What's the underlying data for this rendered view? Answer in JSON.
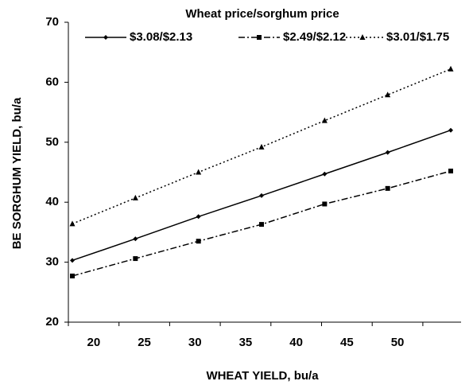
{
  "chart_data": {
    "type": "line",
    "legend_title": "Wheat price/sorghum price",
    "x_label": "WHEAT YIELD, bu/a",
    "y_label": "BE  SORGHUM YIELD, bu/a",
    "categories": [
      20,
      25,
      30,
      35,
      40,
      45,
      50
    ],
    "series": [
      {
        "name": "$3.08/$2.13",
        "color": "#000000",
        "dash": "none",
        "marker": "diamond",
        "values": [
          30.3,
          33.9,
          37.6,
          41.1,
          44.7,
          48.3,
          52.0
        ]
      },
      {
        "name": "$2.49/$2.12",
        "color": "#000000",
        "dash": "8 3 2 3",
        "marker": "square",
        "values": [
          27.7,
          30.6,
          33.5,
          36.3,
          39.7,
          42.3,
          45.2
        ]
      },
      {
        "name": "$3.01/$1.75",
        "color": "#000000",
        "dash": "2 3",
        "marker": "triangle",
        "values": [
          36.4,
          40.7,
          45.0,
          49.2,
          53.6,
          57.9,
          62.2
        ]
      }
    ],
    "ylim": [
      20,
      70
    ],
    "yticks": [
      20,
      30,
      40,
      50,
      60,
      70
    ],
    "grid": false
  }
}
